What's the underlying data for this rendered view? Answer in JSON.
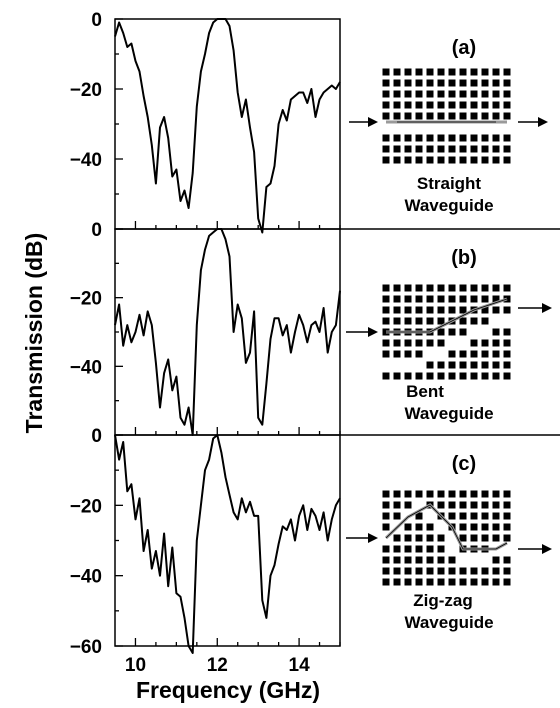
{
  "figure": {
    "ylabel": "Transmission (dB)",
    "xlabel": "Frequency (GHz)",
    "colors": {
      "line": "#000000",
      "path": "#9a9a9a",
      "hole": "#000000",
      "background": "#ffffff"
    }
  },
  "chart_data": {
    "type": "line",
    "xlim": [
      9.5,
      15.0
    ],
    "ylim": [
      -60,
      0
    ],
    "x_ticks": [
      10,
      12,
      14
    ],
    "grid": false,
    "panels": [
      {
        "label": "(a)",
        "caption": [
          "Straight",
          "Waveguide"
        ],
        "y_ticks": [
          0,
          -20,
          -40
        ],
        "x": [
          9.5,
          9.6,
          9.7,
          9.8,
          9.9,
          10.0,
          10.1,
          10.2,
          10.3,
          10.4,
          10.5,
          10.6,
          10.7,
          10.8,
          10.9,
          11.0,
          11.1,
          11.2,
          11.3,
          11.4,
          11.5,
          11.6,
          11.7,
          11.8,
          11.9,
          12.0,
          12.1,
          12.2,
          12.3,
          12.4,
          12.5,
          12.6,
          12.7,
          12.8,
          12.9,
          13.0,
          13.1,
          13.2,
          13.3,
          13.4,
          13.5,
          13.6,
          13.7,
          13.8,
          13.9,
          14.0,
          14.1,
          14.2,
          14.3,
          14.4,
          14.5,
          14.6,
          14.7,
          14.8,
          14.9,
          15.0
        ],
        "y": [
          -5,
          -1,
          -4,
          -8,
          -7,
          -12,
          -15,
          -22,
          -28,
          -36,
          -47,
          -31,
          -28,
          -34,
          -45,
          -43,
          -52,
          -49,
          -54,
          -44,
          -25,
          -15,
          -10,
          -4,
          -1,
          0,
          0,
          0,
          -2,
          -9,
          -21,
          -28,
          -23,
          -31,
          -38,
          -57,
          -61,
          -48,
          -47,
          -42,
          -30,
          -26,
          -29,
          -23,
          -22,
          -21,
          -21,
          -24,
          -20,
          -28,
          -23,
          -21,
          -20,
          -19,
          -20,
          -18
        ]
      },
      {
        "label": "(b)",
        "caption": [
          "Bent",
          "Waveguide"
        ],
        "y_ticks": [
          0,
          -20,
          -40
        ],
        "x": [
          9.5,
          9.6,
          9.7,
          9.8,
          9.9,
          10.0,
          10.1,
          10.2,
          10.3,
          10.4,
          10.5,
          10.6,
          10.7,
          10.8,
          10.9,
          11.0,
          11.1,
          11.2,
          11.3,
          11.4,
          11.5,
          11.6,
          11.7,
          11.8,
          11.9,
          12.0,
          12.1,
          12.2,
          12.3,
          12.4,
          12.5,
          12.6,
          12.7,
          12.8,
          12.9,
          13.0,
          13.1,
          13.2,
          13.3,
          13.4,
          13.5,
          13.6,
          13.7,
          13.8,
          13.9,
          14.0,
          14.1,
          14.2,
          14.3,
          14.4,
          14.5,
          14.6,
          14.7,
          14.8,
          14.9,
          15.0
        ],
        "y": [
          -28,
          -22,
          -34,
          -28,
          -33,
          -30,
          -25,
          -31,
          -24,
          -28,
          -39,
          -52,
          -42,
          -38,
          -47,
          -43,
          -55,
          -57,
          -52,
          -60,
          -28,
          -12,
          -6,
          -2,
          -1,
          0,
          0,
          -3,
          -8,
          -30,
          -22,
          -26,
          -39,
          -36,
          -24,
          -55,
          -57,
          -45,
          -32,
          -26,
          -26,
          -31,
          -28,
          -36,
          -30,
          -25,
          -28,
          -33,
          -28,
          -27,
          -30,
          -23,
          -36,
          -30,
          -28,
          -18
        ]
      },
      {
        "label": "(c)",
        "caption": [
          "Zig-zag",
          "Waveguide"
        ],
        "y_ticks": [
          0,
          -20,
          -40,
          -60
        ],
        "x": [
          9.5,
          9.6,
          9.7,
          9.8,
          9.9,
          10.0,
          10.1,
          10.2,
          10.3,
          10.4,
          10.5,
          10.6,
          10.7,
          10.8,
          10.9,
          11.0,
          11.1,
          11.2,
          11.3,
          11.4,
          11.5,
          11.6,
          11.7,
          11.8,
          11.9,
          12.0,
          12.1,
          12.2,
          12.3,
          12.4,
          12.5,
          12.6,
          12.7,
          12.8,
          12.9,
          13.0,
          13.1,
          13.2,
          13.3,
          13.4,
          13.5,
          13.6,
          13.7,
          13.8,
          13.9,
          14.0,
          14.1,
          14.2,
          14.3,
          14.4,
          14.5,
          14.6,
          14.7,
          14.8,
          14.9,
          15.0
        ],
        "y": [
          0,
          -7,
          -2,
          -16,
          -14,
          -24,
          -18,
          -33,
          -27,
          -38,
          -33,
          -40,
          -28,
          -43,
          -32,
          -45,
          -46,
          -52,
          -60,
          -62,
          -30,
          -20,
          -10,
          -7,
          -1,
          0,
          -5,
          -12,
          -17,
          -22,
          -24,
          -18,
          -22,
          -19,
          -23,
          -23,
          -47,
          -52,
          -40,
          -37,
          -31,
          -26,
          -27,
          -24,
          -30,
          -23,
          -20,
          -27,
          -21,
          -23,
          -27,
          -22,
          -30,
          -24,
          -20,
          -18
        ]
      }
    ]
  }
}
